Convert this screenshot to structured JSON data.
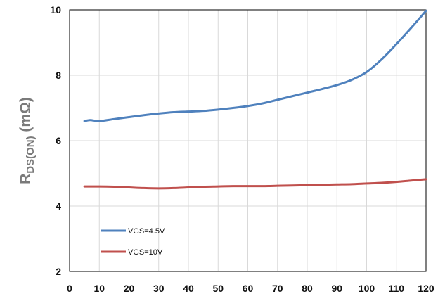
{
  "chart_data": {
    "type": "line",
    "title": "",
    "xlabel": "",
    "ylabel": "R_DS(ON) (mΩ)",
    "ylabel_parts": {
      "main": "R",
      "sub": "DS(ON)",
      "unit": " (mΩ)"
    },
    "xlim": [
      0,
      120
    ],
    "ylim": [
      2,
      10
    ],
    "xticks": [
      0,
      10,
      20,
      30,
      40,
      50,
      60,
      70,
      80,
      90,
      100,
      110,
      120
    ],
    "yticks": [
      2,
      4,
      6,
      8,
      10
    ],
    "grid": true,
    "legend_position": "bottom-left",
    "series": [
      {
        "name": "VGS=4.5V",
        "color": "#4f81bd",
        "x": [
          5,
          7,
          10,
          15,
          20,
          25,
          30,
          35,
          40,
          45,
          50,
          55,
          60,
          65,
          70,
          75,
          80,
          85,
          90,
          95,
          100,
          105,
          110,
          115,
          120
        ],
        "y": [
          6.6,
          6.63,
          6.6,
          6.66,
          6.72,
          6.78,
          6.83,
          6.87,
          6.89,
          6.91,
          6.95,
          7.0,
          7.06,
          7.14,
          7.25,
          7.36,
          7.47,
          7.58,
          7.7,
          7.86,
          8.1,
          8.48,
          8.95,
          9.45,
          9.97
        ]
      },
      {
        "name": "VGS=10V",
        "color": "#c0504d",
        "x": [
          5,
          10,
          15,
          20,
          25,
          30,
          35,
          40,
          45,
          50,
          55,
          60,
          65,
          70,
          75,
          80,
          85,
          90,
          95,
          100,
          105,
          110,
          115,
          120
        ],
        "y": [
          4.6,
          4.6,
          4.59,
          4.57,
          4.55,
          4.54,
          4.55,
          4.57,
          4.59,
          4.6,
          4.61,
          4.61,
          4.61,
          4.62,
          4.63,
          4.64,
          4.65,
          4.66,
          4.67,
          4.69,
          4.71,
          4.74,
          4.78,
          4.82
        ]
      }
    ]
  }
}
